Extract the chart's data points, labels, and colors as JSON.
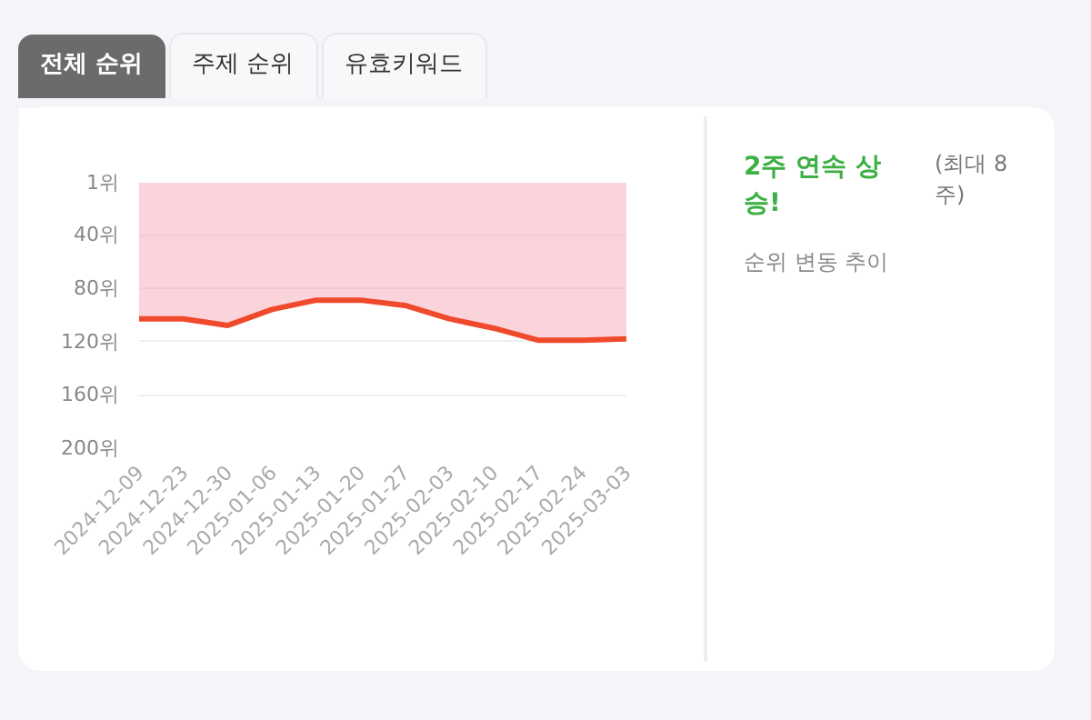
{
  "chart_data": {
    "type": "area",
    "categories": [
      "2024-12-09",
      "2024-12-23",
      "2024-12-30",
      "2025-01-06",
      "2025-01-13",
      "2025-01-20",
      "2025-01-27",
      "2025-02-03",
      "2025-02-10",
      "2025-02-17",
      "2025-02-24",
      "2025-03-03"
    ],
    "series": [
      {
        "color": "#f04a2c",
        "values": [
          103,
          103,
          108,
          96,
          89,
          89,
          93,
          103,
          110,
          119,
          119,
          118
        ]
      }
    ],
    "ylim": [
      200,
      1
    ],
    "yticks": [
      {
        "value": 1,
        "label": "1위"
      },
      {
        "value": 40,
        "label": "40위"
      },
      {
        "value": 80,
        "label": "80위"
      },
      {
        "value": 120,
        "label": "120위"
      },
      {
        "value": 160,
        "label": "160위"
      },
      {
        "value": 200,
        "label": "200위"
      }
    ],
    "grid": "y",
    "annotations": [
      "전체 순위",
      "주제 순위",
      "유효키워드",
      "2주 연속 상승!",
      "(최대 8 주)",
      "순위 변동 추이"
    ]
  }
}
